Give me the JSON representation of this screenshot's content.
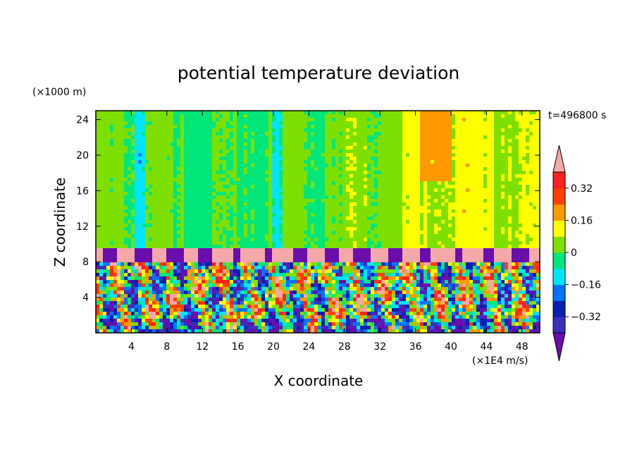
{
  "chart_data": {
    "type": "heatmap",
    "title": "potential temperature deviation",
    "xlabel": "X coordinate",
    "ylabel": "Z coordinate",
    "x_unit": "(×1E4 m/s)",
    "y_unit": "(×1000 m)",
    "time_label": "t=496800 s",
    "xlim": [
      0,
      50
    ],
    "ylim": [
      0,
      25
    ],
    "x_ticks": [
      4,
      8,
      12,
      16,
      20,
      24,
      28,
      32,
      36,
      40,
      44,
      48
    ],
    "y_ticks": [
      4,
      8,
      12,
      16,
      20,
      24
    ],
    "colorbar": {
      "levels": [
        -0.4,
        -0.32,
        -0.24,
        -0.16,
        -0.08,
        0,
        0.08,
        0.16,
        0.24,
        0.32,
        0.4
      ],
      "labels": [
        "0.32",
        "0.16",
        "0",
        "−0.16",
        "−0.32"
      ],
      "label_values": [
        0.32,
        0.16,
        0,
        -0.16,
        -0.32
      ],
      "colors": [
        "#6a0dad",
        "#3b2fbf",
        "#0a1fb0",
        "#0073ff",
        "#00e5ff",
        "#00e67a",
        "#7ee000",
        "#ffff00",
        "#ff9900",
        "#ff4000",
        "#ff2020",
        "#f4a8a8"
      ]
    },
    "regions": {
      "upper_troposphere_mean": 0.0,
      "tropopause_band_z": [
        8.0,
        9.7
      ],
      "tropopause_band_value": 0.42,
      "convective_layer_z": [
        0,
        8.0
      ]
    }
  }
}
